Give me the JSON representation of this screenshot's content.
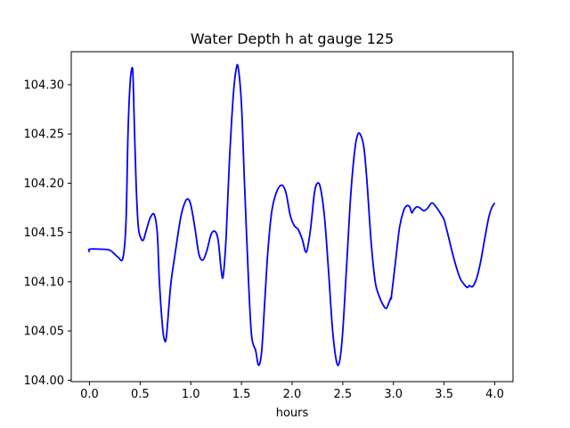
{
  "chart_data": {
    "type": "line",
    "title": "Water Depth h at gauge 125",
    "xlabel": "hours",
    "ylabel": "",
    "xlim": [
      -0.18,
      4.18
    ],
    "ylim": [
      103.9985,
      104.3335
    ],
    "xticks": [
      0.0,
      0.5,
      1.0,
      1.5,
      2.0,
      2.5,
      3.0,
      3.5,
      4.0
    ],
    "xtick_labels": [
      "0.0",
      "0.5",
      "1.0",
      "1.5",
      "2.0",
      "2.5",
      "3.0",
      "3.5",
      "4.0"
    ],
    "yticks": [
      104.0,
      104.05,
      104.1,
      104.15,
      104.2,
      104.25,
      104.3
    ],
    "ytick_labels": [
      "104.00",
      "104.05",
      "104.10",
      "104.15",
      "104.20",
      "104.25",
      "104.30"
    ],
    "grid": false,
    "series": [
      {
        "color": "#0000ff",
        "x": [
          0.0,
          0.0,
          0.1,
          0.2,
          0.28,
          0.33,
          0.36,
          0.38,
          0.4,
          0.42,
          0.43,
          0.44,
          0.46,
          0.48,
          0.5,
          0.53,
          0.56,
          0.6,
          0.64,
          0.67,
          0.69,
          0.72,
          0.74,
          0.76,
          0.8,
          0.84,
          0.9,
          0.94,
          0.97,
          1.0,
          1.04,
          1.08,
          1.12,
          1.16,
          1.2,
          1.24,
          1.27,
          1.3,
          1.32,
          1.35,
          1.38,
          1.42,
          1.45,
          1.47,
          1.5,
          1.53,
          1.57,
          1.6,
          1.64,
          1.67,
          1.7,
          1.73,
          1.76,
          1.8,
          1.85,
          1.9,
          1.94,
          1.98,
          2.02,
          2.06,
          2.1,
          2.14,
          2.18,
          2.22,
          2.25,
          2.28,
          2.32,
          2.36,
          2.4,
          2.44,
          2.47,
          2.5,
          2.54,
          2.58,
          2.62,
          2.65,
          2.68,
          2.71,
          2.74,
          2.78,
          2.82,
          2.86,
          2.9,
          2.93,
          2.96,
          2.98,
          2.98,
          3.02,
          3.06,
          3.1,
          3.13,
          3.16,
          3.18,
          3.2,
          3.23,
          3.26,
          3.3,
          3.34,
          3.38,
          3.42,
          3.46,
          3.5,
          3.52,
          3.54,
          3.58,
          3.62,
          3.66,
          3.7,
          3.73,
          3.75,
          3.78,
          3.82,
          3.86,
          3.9,
          3.94,
          3.97,
          4.0
        ],
        "y": [
          104.13,
          104.133,
          104.133,
          104.132,
          104.125,
          104.124,
          104.16,
          104.25,
          104.3,
          104.317,
          104.308,
          104.27,
          104.2,
          104.158,
          104.146,
          104.142,
          104.152,
          104.165,
          104.168,
          104.148,
          104.1,
          104.055,
          104.041,
          104.045,
          104.095,
          104.125,
          104.165,
          104.18,
          104.184,
          104.178,
          104.155,
          104.128,
          104.122,
          104.132,
          104.148,
          104.151,
          104.142,
          104.112,
          104.106,
          104.148,
          104.22,
          104.29,
          104.317,
          104.316,
          104.28,
          104.2,
          104.1,
          104.045,
          104.03,
          104.015,
          104.03,
          104.08,
          104.13,
          104.172,
          104.192,
          104.198,
          104.19,
          104.168,
          104.157,
          104.153,
          104.143,
          104.13,
          104.152,
          104.19,
          104.2,
          104.195,
          104.165,
          104.11,
          104.05,
          104.018,
          104.02,
          104.05,
          104.12,
          104.19,
          104.235,
          104.25,
          104.248,
          104.235,
          104.2,
          104.14,
          104.1,
          104.085,
          104.076,
          104.073,
          104.08,
          104.085,
          104.085,
          104.12,
          104.155,
          104.172,
          104.177,
          104.176,
          104.17,
          104.173,
          104.176,
          104.175,
          104.172,
          104.175,
          104.18,
          104.176,
          104.17,
          104.163,
          104.155,
          104.147,
          104.13,
          104.115,
          104.103,
          104.097,
          104.094,
          104.096,
          104.095,
          104.103,
          104.12,
          104.143,
          104.165,
          104.175,
          104.18
        ]
      }
    ]
  }
}
